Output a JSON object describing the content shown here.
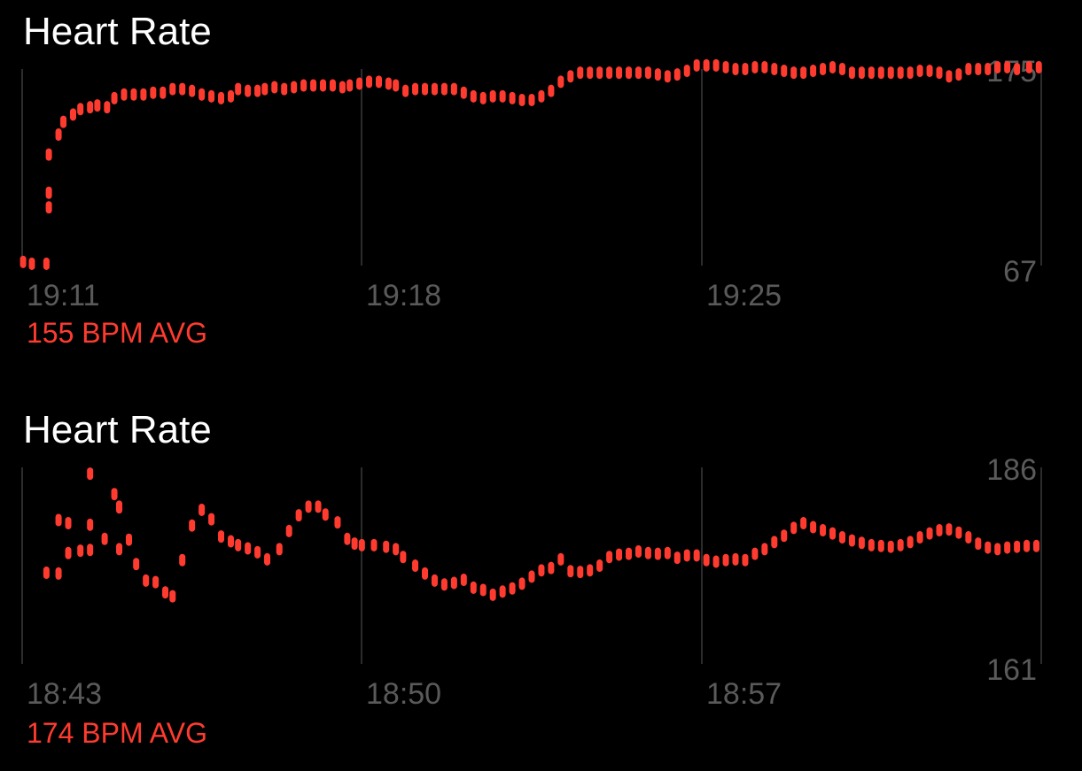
{
  "colors": {
    "background": "#000000",
    "title": "#ffffff",
    "accent": "#ff3b30",
    "grid": "#3a3a3a",
    "axis_text": "#5a5a5a"
  },
  "panels": [
    {
      "title": "Heart Rate",
      "avg_label": "155 BPM AVG"
    },
    {
      "title": "Heart Rate",
      "avg_label": "174 BPM AVG"
    }
  ],
  "chart_data": [
    {
      "type": "scatter",
      "title": "Heart Rate",
      "x_unit": "minutes after 19:11",
      "x_range": [
        0,
        21
      ],
      "x_ticks": [
        "19:11",
        "19:18",
        "19:25"
      ],
      "ylim": [
        67,
        175
      ],
      "y_tick_labels": [
        "175",
        "67"
      ],
      "grid": true,
      "summary": "155 BPM AVG",
      "series": [
        {
          "points": [
            [
              0.02,
              69
            ],
            [
              0.2,
              68
            ],
            [
              0.5,
              68
            ],
            [
              0.55,
              107
            ],
            [
              0.55,
              128
            ],
            [
              0.55,
              99
            ],
            [
              0.75,
              139
            ],
            [
              0.85,
              146
            ],
            [
              1.05,
              150
            ],
            [
              1.2,
              153
            ],
            [
              1.4,
              154
            ],
            [
              1.55,
              155
            ],
            [
              1.75,
              154
            ],
            [
              1.9,
              159
            ],
            [
              2.1,
              161
            ],
            [
              2.3,
              161
            ],
            [
              2.5,
              161
            ],
            [
              2.7,
              162
            ],
            [
              2.9,
              162
            ],
            [
              3.1,
              164
            ],
            [
              3.3,
              164
            ],
            [
              3.5,
              163
            ],
            [
              3.7,
              161
            ],
            [
              3.9,
              160
            ],
            [
              4.1,
              159
            ],
            [
              4.3,
              160
            ],
            [
              4.45,
              164
            ],
            [
              4.65,
              163
            ],
            [
              4.85,
              163
            ],
            [
              5.0,
              164
            ],
            [
              5.2,
              165
            ],
            [
              5.4,
              164
            ],
            [
              5.6,
              165
            ],
            [
              5.8,
              166
            ],
            [
              6.0,
              166
            ],
            [
              6.2,
              166
            ],
            [
              6.4,
              166
            ],
            [
              6.6,
              165
            ],
            [
              6.75,
              166
            ],
            [
              6.95,
              167
            ],
            [
              7.15,
              168
            ],
            [
              7.35,
              168
            ],
            [
              7.55,
              167
            ],
            [
              7.7,
              166
            ],
            [
              7.9,
              163
            ],
            [
              8.1,
              164
            ],
            [
              8.3,
              164
            ],
            [
              8.5,
              164
            ],
            [
              8.7,
              164
            ],
            [
              8.9,
              164
            ],
            [
              9.1,
              162
            ],
            [
              9.3,
              160
            ],
            [
              9.5,
              159
            ],
            [
              9.7,
              160
            ],
            [
              9.9,
              160
            ],
            [
              10.1,
              159
            ],
            [
              10.3,
              158
            ],
            [
              10.5,
              158
            ],
            [
              10.7,
              160
            ],
            [
              10.9,
              163
            ],
            [
              11.1,
              168
            ],
            [
              11.3,
              171
            ],
            [
              11.5,
              173
            ],
            [
              11.7,
              173
            ],
            [
              11.9,
              173
            ],
            [
              12.1,
              173
            ],
            [
              12.3,
              173
            ],
            [
              12.5,
              173
            ],
            [
              12.7,
              173
            ],
            [
              12.9,
              173
            ],
            [
              13.1,
              172
            ],
            [
              13.3,
              171
            ],
            [
              13.5,
              172
            ],
            [
              13.7,
              174
            ],
            [
              13.9,
              177
            ],
            [
              14.1,
              177
            ],
            [
              14.3,
              177
            ],
            [
              14.5,
              176
            ],
            [
              14.7,
              175
            ],
            [
              14.9,
              175
            ],
            [
              15.1,
              176
            ],
            [
              15.3,
              176
            ],
            [
              15.5,
              175
            ],
            [
              15.7,
              174
            ],
            [
              15.9,
              173
            ],
            [
              16.1,
              173
            ],
            [
              16.3,
              174
            ],
            [
              16.5,
              175
            ],
            [
              16.7,
              176
            ],
            [
              16.9,
              175
            ],
            [
              17.1,
              173
            ],
            [
              17.3,
              173
            ],
            [
              17.5,
              173
            ],
            [
              17.7,
              173
            ],
            [
              17.9,
              173
            ],
            [
              18.1,
              173
            ],
            [
              18.3,
              173
            ],
            [
              18.5,
              174
            ],
            [
              18.7,
              174
            ],
            [
              18.9,
              173
            ],
            [
              19.1,
              171
            ],
            [
              19.3,
              172
            ],
            [
              19.5,
              175
            ],
            [
              19.7,
              175
            ],
            [
              19.9,
              175
            ],
            [
              20.1,
              176
            ],
            [
              20.3,
              176
            ],
            [
              20.5,
              175
            ],
            [
              20.75,
              176
            ],
            [
              20.95,
              176
            ]
          ]
        }
      ]
    },
    {
      "type": "scatter",
      "title": "Heart Rate",
      "x_unit": "minutes after 18:43",
      "x_range": [
        0,
        21
      ],
      "x_ticks": [
        "18:43",
        "18:50",
        "18:57"
      ],
      "ylim": [
        161,
        186
      ],
      "y_tick_labels": [
        "186",
        "161"
      ],
      "grid": true,
      "summary": "174 BPM AVG",
      "series": [
        {
          "points": [
            [
              0.5,
              172.6
            ],
            [
              0.75,
              172.5
            ],
            [
              0.75,
              179.3
            ],
            [
              0.95,
              178.9
            ],
            [
              0.95,
              175.1
            ],
            [
              1.2,
              175.4
            ],
            [
              1.4,
              175.5
            ],
            [
              1.4,
              178.7
            ],
            [
              1.4,
              185.2
            ],
            [
              1.7,
              176.9
            ],
            [
              1.9,
              182.6
            ],
            [
              2.0,
              175.6
            ],
            [
              2.0,
              180.9
            ],
            [
              2.0,
              181.0
            ],
            [
              2.2,
              176.8
            ],
            [
              2.35,
              173.7
            ],
            [
              2.55,
              171.6
            ],
            [
              2.75,
              171.4
            ],
            [
              2.95,
              170.1
            ],
            [
              3.1,
              169.6
            ],
            [
              3.3,
              174.2
            ],
            [
              3.5,
              178.6
            ],
            [
              3.7,
              180.6
            ],
            [
              3.9,
              179.4
            ],
            [
              4.1,
              177.2
            ],
            [
              4.3,
              176.6
            ],
            [
              4.45,
              176.1
            ],
            [
              4.65,
              175.7
            ],
            [
              4.85,
              175.2
            ],
            [
              5.05,
              174.3
            ],
            [
              5.3,
              175.6
            ],
            [
              5.5,
              177.9
            ],
            [
              5.7,
              179.9
            ],
            [
              5.9,
              181.0
            ],
            [
              6.1,
              181.0
            ],
            [
              6.25,
              180.0
            ],
            [
              6.5,
              179.0
            ],
            [
              6.7,
              176.9
            ],
            [
              6.85,
              176.3
            ],
            [
              7.0,
              176.1
            ],
            [
              7.25,
              176.1
            ],
            [
              7.5,
              175.9
            ],
            [
              7.7,
              175.6
            ],
            [
              7.85,
              174.6
            ],
            [
              8.1,
              173.5
            ],
            [
              8.3,
              172.5
            ],
            [
              8.5,
              171.6
            ],
            [
              8.7,
              171.1
            ],
            [
              8.9,
              171.3
            ],
            [
              9.1,
              171.7
            ],
            [
              9.3,
              170.7
            ],
            [
              9.5,
              170.4
            ],
            [
              9.7,
              169.8
            ],
            [
              9.9,
              170.2
            ],
            [
              10.1,
              170.6
            ],
            [
              10.3,
              171.2
            ],
            [
              10.5,
              172.1
            ],
            [
              10.7,
              172.9
            ],
            [
              10.9,
              173.2
            ],
            [
              11.1,
              174.3
            ],
            [
              11.3,
              172.8
            ],
            [
              11.5,
              172.7
            ],
            [
              11.7,
              172.9
            ],
            [
              11.9,
              173.5
            ],
            [
              12.1,
              174.6
            ],
            [
              12.3,
              174.9
            ],
            [
              12.5,
              175.0
            ],
            [
              12.7,
              175.3
            ],
            [
              12.9,
              175.1
            ],
            [
              13.1,
              175.0
            ],
            [
              13.3,
              175.1
            ],
            [
              13.5,
              174.5
            ],
            [
              13.7,
              174.8
            ],
            [
              13.9,
              174.8
            ],
            [
              14.1,
              174.2
            ],
            [
              14.3,
              174.0
            ],
            [
              14.5,
              174.2
            ],
            [
              14.7,
              174.3
            ],
            [
              14.9,
              174.2
            ],
            [
              15.1,
              175.0
            ],
            [
              15.3,
              175.6
            ],
            [
              15.5,
              176.5
            ],
            [
              15.7,
              177.3
            ],
            [
              15.9,
              178.3
            ],
            [
              16.1,
              178.9
            ],
            [
              16.3,
              178.4
            ],
            [
              16.5,
              178.0
            ],
            [
              16.7,
              177.6
            ],
            [
              16.9,
              177.1
            ],
            [
              17.1,
              176.7
            ],
            [
              17.3,
              176.4
            ],
            [
              17.5,
              176.1
            ],
            [
              17.7,
              176.0
            ],
            [
              17.9,
              175.9
            ],
            [
              18.1,
              176.1
            ],
            [
              18.3,
              176.5
            ],
            [
              18.5,
              177.1
            ],
            [
              18.7,
              177.6
            ],
            [
              18.9,
              178.0
            ],
            [
              19.1,
              178.1
            ],
            [
              19.3,
              177.7
            ],
            [
              19.5,
              177.1
            ],
            [
              19.7,
              176.3
            ],
            [
              19.9,
              175.8
            ],
            [
              20.1,
              175.6
            ],
            [
              20.3,
              175.8
            ],
            [
              20.5,
              175.9
            ],
            [
              20.7,
              176.0
            ],
            [
              20.9,
              176.0
            ]
          ]
        }
      ]
    }
  ]
}
